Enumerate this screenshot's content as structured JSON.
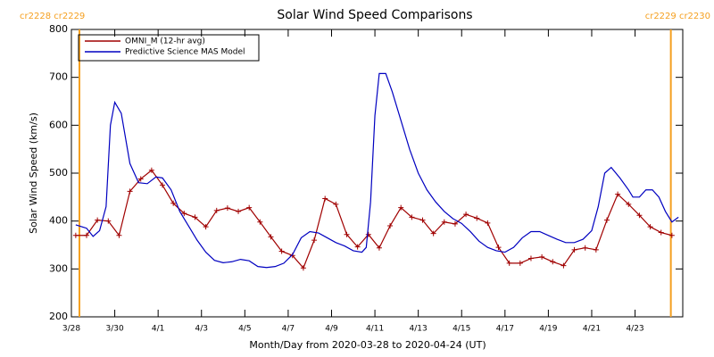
{
  "chart_data": {
    "type": "line",
    "title": "Solar Wind Speed Comparisons",
    "x_label": "Month/Day from 2020-03-28 to 2020-04-24 (UT)",
    "y_label": "Solar Wind Speed (km/s)",
    "xlim": [
      0,
      28.2
    ],
    "ylim": [
      200,
      800
    ],
    "yticks": [
      200,
      300,
      400,
      500,
      600,
      700,
      800
    ],
    "xticks": [
      {
        "value": 0,
        "label": "3/28"
      },
      {
        "value": 2,
        "label": "3/30"
      },
      {
        "value": 4,
        "label": "4/1"
      },
      {
        "value": 6,
        "label": "4/3"
      },
      {
        "value": 8,
        "label": "4/5"
      },
      {
        "value": 10,
        "label": "4/7"
      },
      {
        "value": 12,
        "label": "4/9"
      },
      {
        "value": 14,
        "label": "4/11"
      },
      {
        "value": 16,
        "label": "4/13"
      },
      {
        "value": 18,
        "label": "4/15"
      },
      {
        "value": 20,
        "label": "4/17"
      },
      {
        "value": 22,
        "label": "4/19"
      },
      {
        "value": 24,
        "label": "4/21"
      },
      {
        "value": 26,
        "label": "4/23"
      }
    ],
    "legend": "upper left",
    "annotations": [
      {
        "text": "cr2228 cr2229",
        "x": 0.37
      },
      {
        "text": "cr2229 cr2230",
        "x": 27.65
      }
    ],
    "annotation_color": "#f5a020",
    "series": [
      {
        "name": "OMNI_M (12-hr avg)",
        "color": "#a00000",
        "marker": "+",
        "x": [
          0.2,
          0.7,
          1.2,
          1.7,
          2.2,
          2.7,
          3.2,
          3.7,
          4.2,
          4.7,
          5.2,
          5.7,
          6.2,
          6.7,
          7.2,
          7.7,
          8.2,
          8.7,
          9.2,
          9.7,
          10.2,
          10.7,
          11.2,
          11.7,
          12.2,
          12.7,
          13.2,
          13.7,
          14.2,
          14.7,
          15.2,
          15.7,
          16.2,
          16.7,
          17.2,
          17.7,
          18.2,
          18.7,
          19.2,
          19.7,
          20.2,
          20.7,
          21.2,
          21.7,
          22.2,
          22.7,
          23.2,
          23.7,
          24.2,
          24.7,
          25.2,
          25.7,
          26.2,
          26.7,
          27.2,
          27.7
        ],
        "values": [
          370,
          370,
          402,
          400,
          370,
          462,
          488,
          506,
          475,
          437,
          416,
          408,
          388,
          422,
          427,
          420,
          428,
          398,
          367,
          337,
          328,
          302,
          360,
          447,
          435,
          372,
          346,
          372,
          344,
          390,
          428,
          408,
          402,
          374,
          398,
          394,
          414,
          406,
          396,
          345,
          312,
          312,
          322,
          325,
          315,
          307,
          340,
          344,
          340,
          402,
          456,
          435,
          412,
          388,
          376,
          370
        ]
      },
      {
        "name": "Predictive Science MAS Model",
        "color": "#0000c0",
        "x": [
          0.2,
          0.7,
          1.0,
          1.3,
          1.6,
          1.8,
          2.0,
          2.3,
          2.7,
          3.1,
          3.5,
          3.9,
          4.2,
          4.6,
          5.0,
          5.4,
          5.8,
          6.2,
          6.6,
          7.0,
          7.4,
          7.8,
          8.2,
          8.6,
          9.0,
          9.4,
          9.8,
          10.2,
          10.6,
          11.0,
          11.4,
          11.8,
          12.2,
          12.6,
          13.0,
          13.4,
          13.6,
          13.8,
          14.0,
          14.2,
          14.5,
          14.8,
          15.2,
          15.6,
          16.0,
          16.4,
          16.8,
          17.2,
          17.6,
          18.0,
          18.4,
          18.8,
          19.2,
          19.6,
          20.0,
          20.4,
          20.8,
          21.2,
          21.6,
          22.0,
          22.4,
          22.8,
          23.2,
          23.6,
          24.0,
          24.3,
          24.6,
          24.9,
          25.3,
          25.7,
          25.9,
          26.2,
          26.5,
          26.8,
          27.1,
          27.4,
          27.7,
          28.0
        ],
        "values": [
          392,
          385,
          368,
          380,
          430,
          600,
          648,
          625,
          520,
          480,
          478,
          492,
          490,
          465,
          420,
          390,
          360,
          335,
          318,
          313,
          315,
          320,
          317,
          305,
          303,
          305,
          312,
          330,
          365,
          378,
          375,
          365,
          355,
          348,
          338,
          335,
          345,
          440,
          620,
          708,
          708,
          670,
          610,
          550,
          500,
          465,
          440,
          420,
          405,
          395,
          378,
          358,
          345,
          338,
          335,
          345,
          365,
          378,
          378,
          370,
          362,
          355,
          355,
          362,
          380,
          430,
          500,
          512,
          490,
          465,
          450,
          450,
          465,
          465,
          450,
          420,
          398,
          408
        ]
      }
    ]
  }
}
